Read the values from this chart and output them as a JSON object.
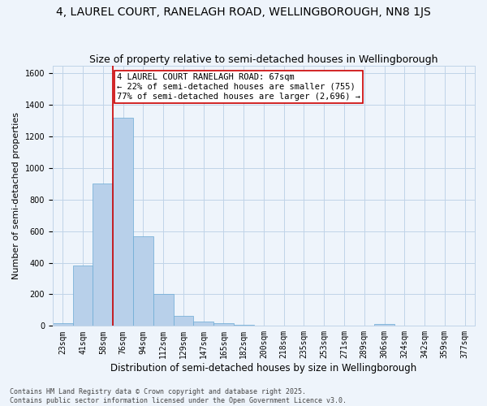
{
  "title": "4, LAUREL COURT, RANELAGH ROAD, WELLINGBOROUGH, NN8 1JS",
  "subtitle": "Size of property relative to semi-detached houses in Wellingborough",
  "xlabel": "Distribution of semi-detached houses by size in Wellingborough",
  "ylabel": "Number of semi-detached properties",
  "categories": [
    "23sqm",
    "41sqm",
    "58sqm",
    "76sqm",
    "94sqm",
    "112sqm",
    "129sqm",
    "147sqm",
    "165sqm",
    "182sqm",
    "200sqm",
    "218sqm",
    "235sqm",
    "253sqm",
    "271sqm",
    "289sqm",
    "306sqm",
    "324sqm",
    "342sqm",
    "359sqm",
    "377sqm"
  ],
  "values": [
    18,
    385,
    900,
    1320,
    570,
    200,
    65,
    28,
    18,
    5,
    0,
    0,
    0,
    0,
    0,
    0,
    10,
    0,
    0,
    0,
    0
  ],
  "bar_color": "#b8d0ea",
  "bar_edge_color": "#6aaad4",
  "grid_color": "#c0d4e8",
  "background_color": "#eef4fb",
  "vline_x_index": 2.5,
  "annotation_text": "4 LAUREL COURT RANELAGH ROAD: 67sqm\n← 22% of semi-detached houses are smaller (755)\n77% of semi-detached houses are larger (2,696) →",
  "ylim": [
    0,
    1650
  ],
  "title_fontsize": 10,
  "subtitle_fontsize": 9,
  "xlabel_fontsize": 8.5,
  "ylabel_fontsize": 8,
  "tick_fontsize": 7,
  "annotation_fontsize": 7.5,
  "footer_text": "Contains HM Land Registry data © Crown copyright and database right 2025.\nContains public sector information licensed under the Open Government Licence v3.0.",
  "vline_color": "#cc0000",
  "footer_fontsize": 6
}
